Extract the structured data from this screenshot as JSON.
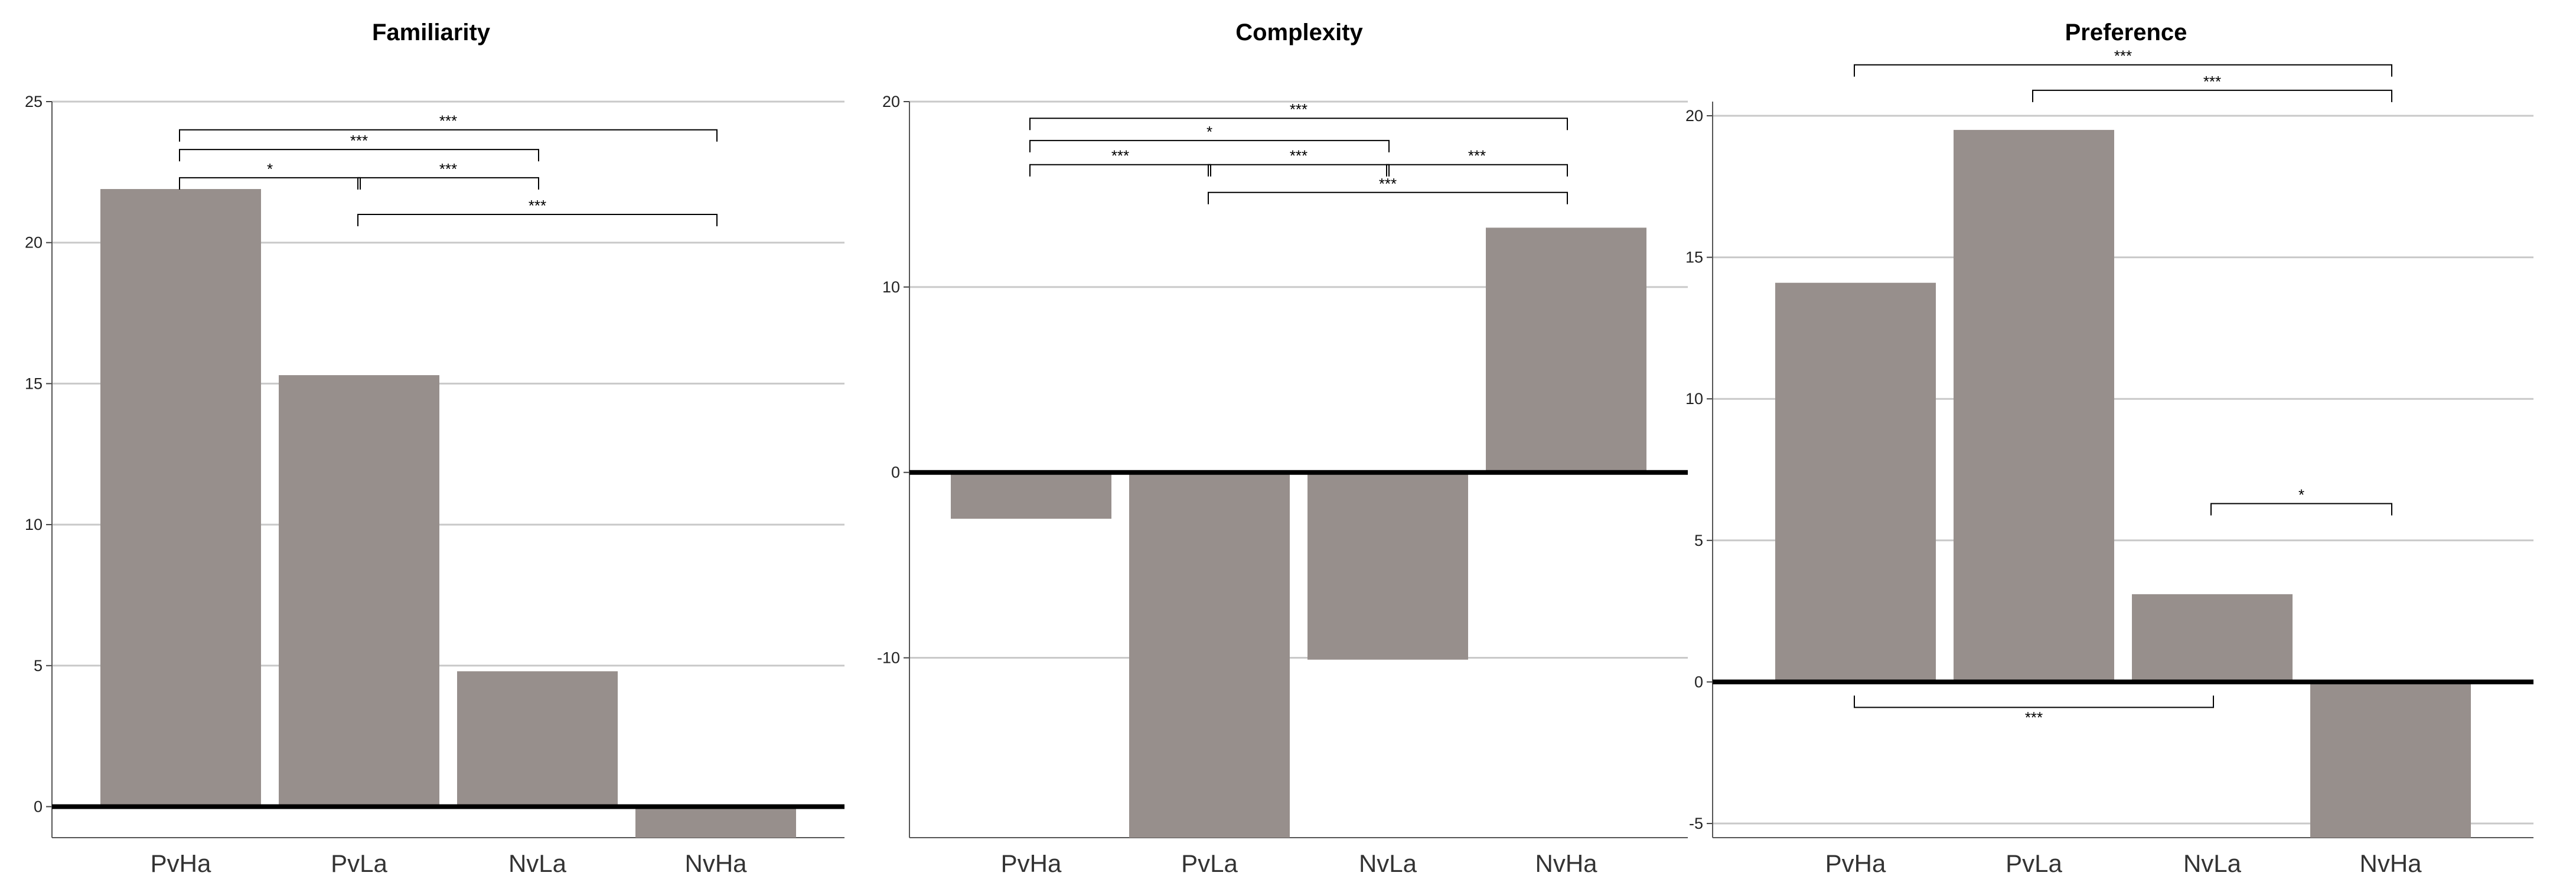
{
  "colors": {
    "bar": "#978f8c",
    "grid": "#c9c9c9",
    "baseline": "#000000",
    "bracket": "#000000"
  },
  "chart_data": [
    {
      "type": "bar",
      "title": "Familiarity",
      "categories": [
        "PvHa",
        "PvLa",
        "NvLa",
        "NvHa"
      ],
      "values": [
        21.9,
        15.3,
        4.8,
        -1.1
      ],
      "ylim": [
        -1.1,
        25
      ],
      "yticks": [
        0,
        5,
        10,
        15,
        20,
        25
      ],
      "grid": true,
      "baseline": 0,
      "significance": [
        {
          "from": "PvHa",
          "to": "NvHa",
          "level": 24.0,
          "label": "***"
        },
        {
          "from": "PvHa",
          "to": "NvLa",
          "level": 23.3,
          "label": "***"
        },
        {
          "from": "PvHa",
          "to": "PvLa",
          "level": 22.3,
          "label": "*"
        },
        {
          "from": "PvLa",
          "to": "NvLa",
          "level": 22.3,
          "label": "***"
        },
        {
          "from": "PvLa",
          "to": "NvHa",
          "level": 21.0,
          "label": "***"
        }
      ]
    },
    {
      "type": "bar",
      "title": "Complexity",
      "categories": [
        "PvHa",
        "PvLa",
        "NvLa",
        "NvHa"
      ],
      "values": [
        -2.5,
        -19.7,
        -10.1,
        13.2
      ],
      "ylim": [
        -19.7,
        20
      ],
      "yticks": [
        -10,
        0,
        10,
        20
      ],
      "grid": true,
      "baseline": 0,
      "significance": [
        {
          "from": "PvHa",
          "to": "NvHa",
          "level": 19.1,
          "label": "***"
        },
        {
          "from": "PvHa",
          "to": "NvLa",
          "level": 17.9,
          "label": "*"
        },
        {
          "from": "PvHa",
          "to": "PvLa",
          "level": 16.6,
          "label": "***"
        },
        {
          "from": "PvLa",
          "to": "NvLa",
          "level": 16.6,
          "label": "***"
        },
        {
          "from": "NvLa",
          "to": "NvHa",
          "level": 16.6,
          "label": "***"
        },
        {
          "from": "PvLa",
          "to": "NvHa",
          "level": 15.1,
          "label": "***"
        }
      ]
    },
    {
      "type": "bar",
      "title": "Preference",
      "categories": [
        "PvHa",
        "PvLa",
        "NvLa",
        "NvHa"
      ],
      "values": [
        14.1,
        19.5,
        3.1,
        -5.5
      ],
      "ylim": [
        -5.5,
        20.5
      ],
      "yticks": [
        -5,
        0,
        5,
        10,
        15,
        20
      ],
      "grid": true,
      "baseline": 0,
      "significance": [
        {
          "from": "PvHa",
          "to": "NvHa",
          "level": 21.8,
          "label": "***"
        },
        {
          "from": "PvLa",
          "to": "NvHa",
          "level": 20.9,
          "label": "***"
        },
        {
          "from": "NvLa",
          "to": "NvHa",
          "level": 6.3,
          "label": "*",
          "dir": "up"
        },
        {
          "from": "PvHa",
          "to": "NvLa",
          "level": -0.9,
          "label": "***",
          "dir": "down"
        }
      ]
    }
  ]
}
